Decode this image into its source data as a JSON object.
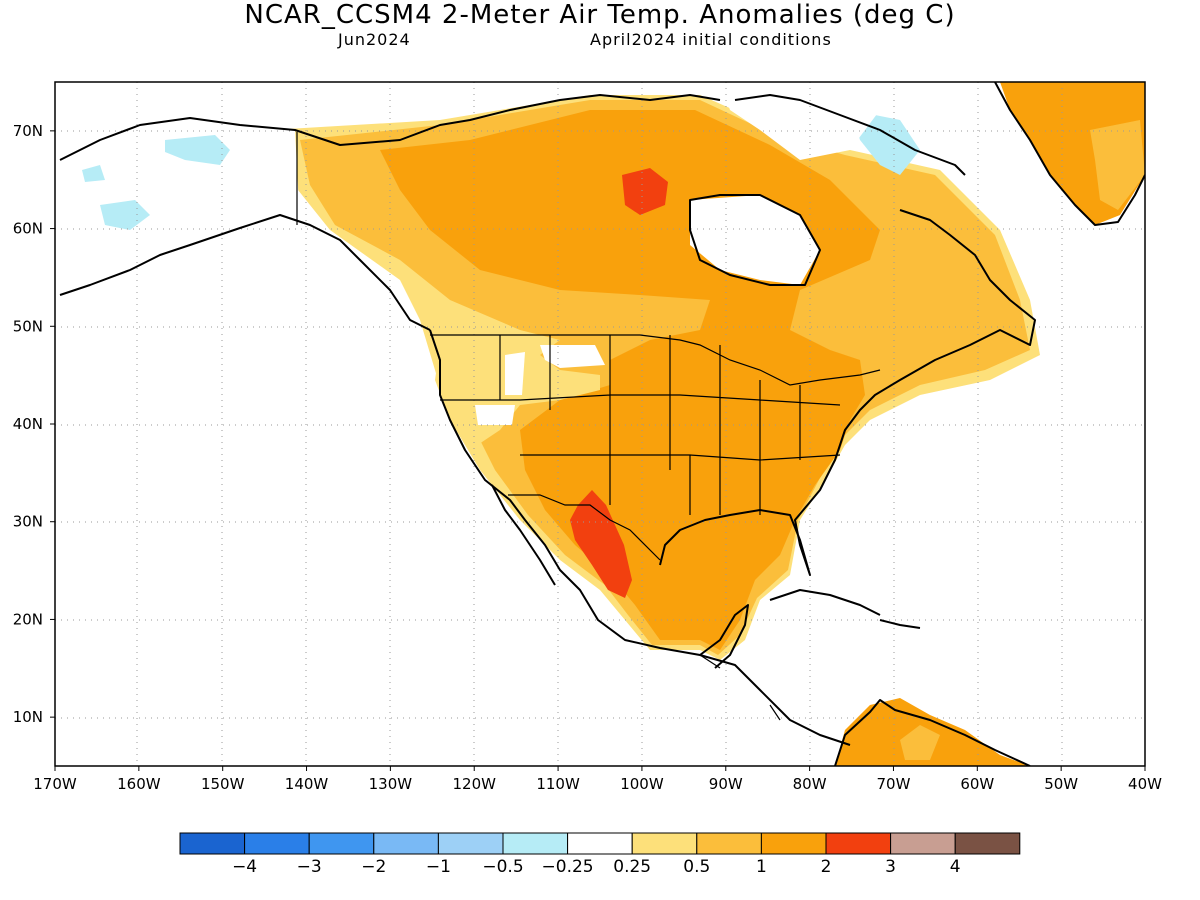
{
  "header": {
    "title": "NCAR_CCSM4 2-Meter Air Temp. Anomalies (deg C)",
    "valid_month": "Jun2024",
    "init_conditions": "April2024 initial conditions"
  },
  "map": {
    "projection": "lat-lon",
    "lon_range": [
      -170,
      -40
    ],
    "lat_range": [
      5,
      75
    ],
    "lon_ticks": [
      "170W",
      "160W",
      "150W",
      "140W",
      "130W",
      "120W",
      "110W",
      "100W",
      "90W",
      "80W",
      "70W",
      "60W",
      "50W",
      "40W"
    ],
    "lat_ticks": [
      "70N",
      "60N",
      "50N",
      "40N",
      "30N",
      "20N",
      "10N"
    ],
    "grid": "dotted"
  },
  "colorbar": {
    "colors": [
      "#1a64d0",
      "#2a7fe8",
      "#3f96f0",
      "#79b9f5",
      "#9dd0f6",
      "#b6ecf6",
      "#ffffff",
      "#fde07a",
      "#fbbe3b",
      "#f9a10c",
      "#f2400f",
      "#c89e92",
      "#7a5244"
    ],
    "labels": [
      "−4",
      "−3",
      "−2",
      "−1",
      "−0.5",
      "−0.25",
      "0.25",
      "0.5",
      "1",
      "2",
      "3",
      "4"
    ]
  },
  "chart_data": {
    "type": "heatmap",
    "title": "NCAR_CCSM4 2-Meter Air Temp. Anomalies (deg C)",
    "units": "deg C",
    "summary_regions": [
      {
        "region": "Contiguous US (most)",
        "anomaly_range": "1 to 2"
      },
      {
        "region": "Northern Mexico / Sierra Madre",
        "anomaly_range": "2 to 3"
      },
      {
        "region": "Hudson Bay west shore",
        "anomaly_range": "2 to 3"
      },
      {
        "region": "Canada",
        "anomaly_range": "0.5 to 2"
      },
      {
        "region": "Alaska",
        "anomaly_range": "-0.5 to 0.5"
      },
      {
        "region": "Greenland south",
        "anomaly_range": "1 to 2"
      },
      {
        "region": "Pacific Northwest / Great Basin",
        "anomaly_range": "0.25 to 1"
      },
      {
        "region": "Northern South America",
        "anomaly_range": "1 to 2"
      }
    ]
  }
}
